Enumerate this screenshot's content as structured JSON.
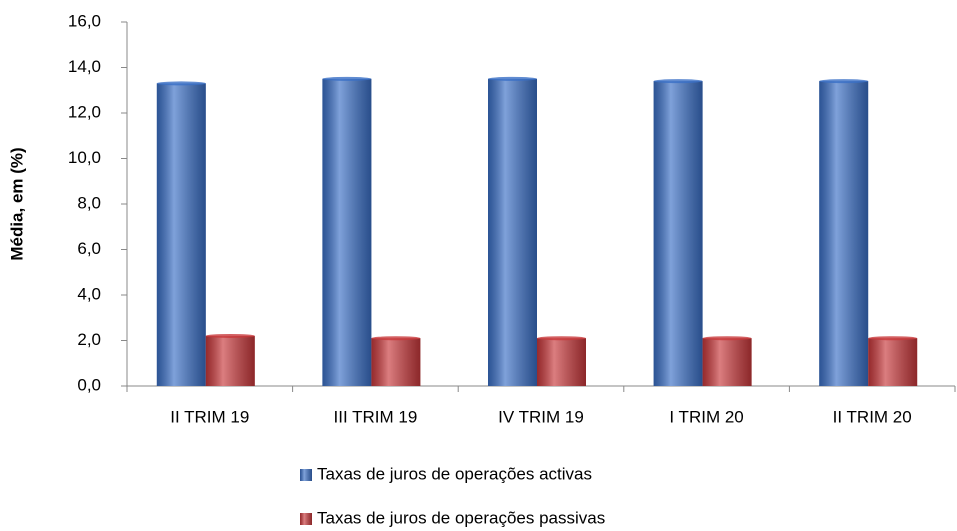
{
  "chart_data": {
    "type": "bar",
    "y_axis_label": "Média, em (%)",
    "categories": [
      "II TRIM 19",
      "III TRIM 19",
      "IV TRIM 19",
      "I TRIM 20",
      "II TRIM 20"
    ],
    "series": [
      {
        "name": "Taxas de juros de operações activas",
        "color": "#3a6fc6",
        "values": [
          13.3,
          13.5,
          13.5,
          13.4,
          13.4
        ]
      },
      {
        "name": "Taxas de juros de operações passivas",
        "color": "#c8383b",
        "values": [
          2.2,
          2.1,
          2.1,
          2.1,
          2.1
        ]
      }
    ],
    "ylim": [
      0,
      16
    ],
    "yticks": [
      {
        "value": 0,
        "label": "0,0"
      },
      {
        "value": 2,
        "label": "2,0"
      },
      {
        "value": 4,
        "label": "4,0"
      },
      {
        "value": 6,
        "label": "6,0"
      },
      {
        "value": 8,
        "label": "8,0"
      },
      {
        "value": 10,
        "label": "10,0"
      },
      {
        "value": 12,
        "label": "12,0"
      },
      {
        "value": 14,
        "label": "14,0"
      },
      {
        "value": 16,
        "label": "16,0"
      }
    ],
    "grid": false,
    "legend_position": "bottom"
  }
}
